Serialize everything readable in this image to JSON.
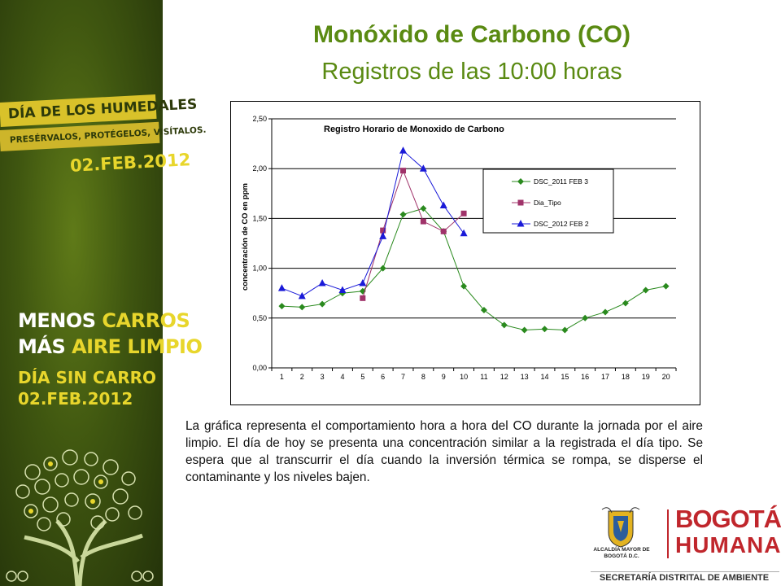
{
  "header": {
    "title": "Monóxido de Carbono (CO)",
    "subtitle": "Registros de las 10:00 horas"
  },
  "sidebar": {
    "ribbon_title": "DÍA DE LOS HUMEDALES",
    "ribbon_subtitle": "PRESÉRVALOS, PROTÉGELOS, VISÍTALOS.",
    "date_top": "02.FEB.2012",
    "slogan_line1_white": "MENOS ",
    "slogan_line1_yellow": "CARROS",
    "slogan_line2_white": "MÁS ",
    "slogan_line2_yellow": "AIRE LIMPIO",
    "event": "DÍA SIN CARRO",
    "date_bottom": "02.FEB.2012",
    "colors": {
      "background": "#3f5610",
      "accent": "#e8d62c",
      "ribbon": "#d9c22a"
    }
  },
  "chart_data": {
    "type": "line",
    "title": "Registro Horario de Monoxido de Carbono",
    "xlabel": "",
    "ylabel": "concentración de CO en ppm",
    "categories": [
      1,
      2,
      3,
      4,
      5,
      6,
      7,
      8,
      9,
      10,
      11,
      12,
      13,
      14,
      15,
      16,
      17,
      18,
      19,
      20
    ],
    "ylim": [
      0,
      2.5
    ],
    "yticks": [
      "0,00",
      "0,50",
      "1,00",
      "1,50",
      "2,00",
      "2,50"
    ],
    "ytick_values": [
      0,
      0.5,
      1.0,
      1.5,
      2.0,
      2.5
    ],
    "grid": true,
    "legend_position": "right",
    "series": [
      {
        "name": "DSC_2011 FEB 3",
        "color": "#2a8a1e",
        "marker": "diamond",
        "values": [
          0.62,
          0.61,
          0.64,
          0.75,
          0.77,
          1.0,
          1.54,
          1.6,
          1.37,
          0.82,
          0.58,
          0.43,
          0.38,
          0.39,
          0.38,
          0.5,
          0.56,
          0.65,
          0.78,
          0.82
        ]
      },
      {
        "name": "Dia_Tipo",
        "color": "#a0336a",
        "marker": "square",
        "values": [
          null,
          null,
          null,
          null,
          0.7,
          1.38,
          1.98,
          1.47,
          1.37,
          1.55,
          null,
          null,
          null,
          null,
          null,
          null,
          null,
          null,
          null,
          null
        ]
      },
      {
        "name": "DSC_2012 FEB 2",
        "color": "#1a1ad8",
        "marker": "triangle",
        "values": [
          0.8,
          0.72,
          0.85,
          0.78,
          0.85,
          1.32,
          2.18,
          2.0,
          1.63,
          1.35,
          null,
          null,
          null,
          null,
          null,
          null,
          null,
          null,
          null,
          null
        ]
      }
    ]
  },
  "description": "La gráfica representa el comportamiento hora a hora del CO durante la jornada por el aire limpio. El día de hoy se presenta una concentración similar a la registrada el día tipo. Se espera que al transcurrir el día cuando la inversión térmica se rompa, se disperse el contaminante y los niveles bajen.",
  "logos": {
    "alcaldia": "ALCALDÍA MAYOR DE BOGOTÁ D.C.",
    "bogota": "BOGOTÁ",
    "humana": "HUMANA",
    "brand_color": "#c0262c"
  },
  "footer": "SECRETARÍA DISTRITAL DE AMBIENTE"
}
